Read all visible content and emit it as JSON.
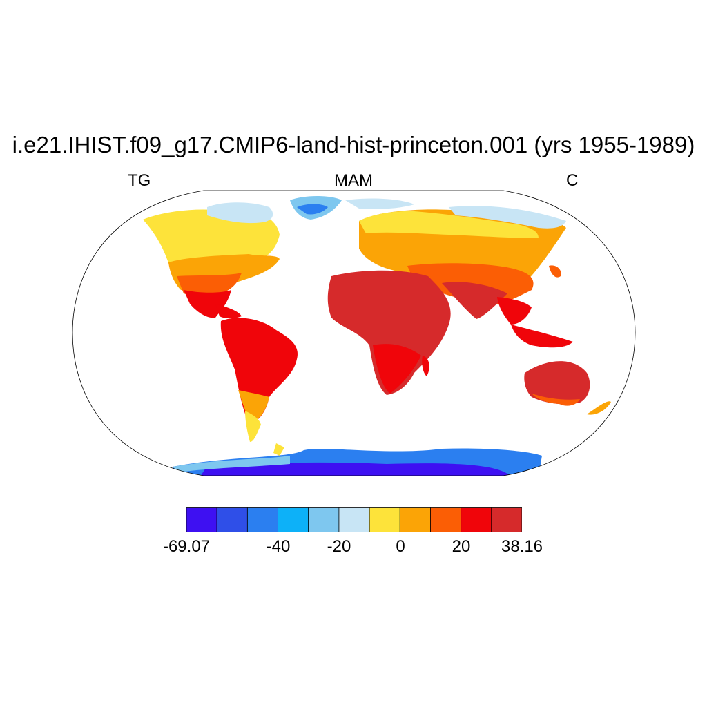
{
  "title": "i.e21.IHIST.f09_g17.CMIP6-land-hist-princeton.001 (yrs 1955-1989)",
  "left_label": "TG",
  "center_label": "MAM",
  "right_label": "C",
  "colorbar": {
    "colors": [
      "#3e10f2",
      "#2f4fe8",
      "#2b7ff0",
      "#0db1f8",
      "#7ec7ef",
      "#c8e5f5",
      "#fde33a",
      "#fba406",
      "#fb5e05",
      "#f0050a",
      "#d62a2b"
    ],
    "tick_labels": [
      "-69.07",
      "-40",
      "-20",
      "0",
      "20",
      "38.16"
    ]
  }
}
